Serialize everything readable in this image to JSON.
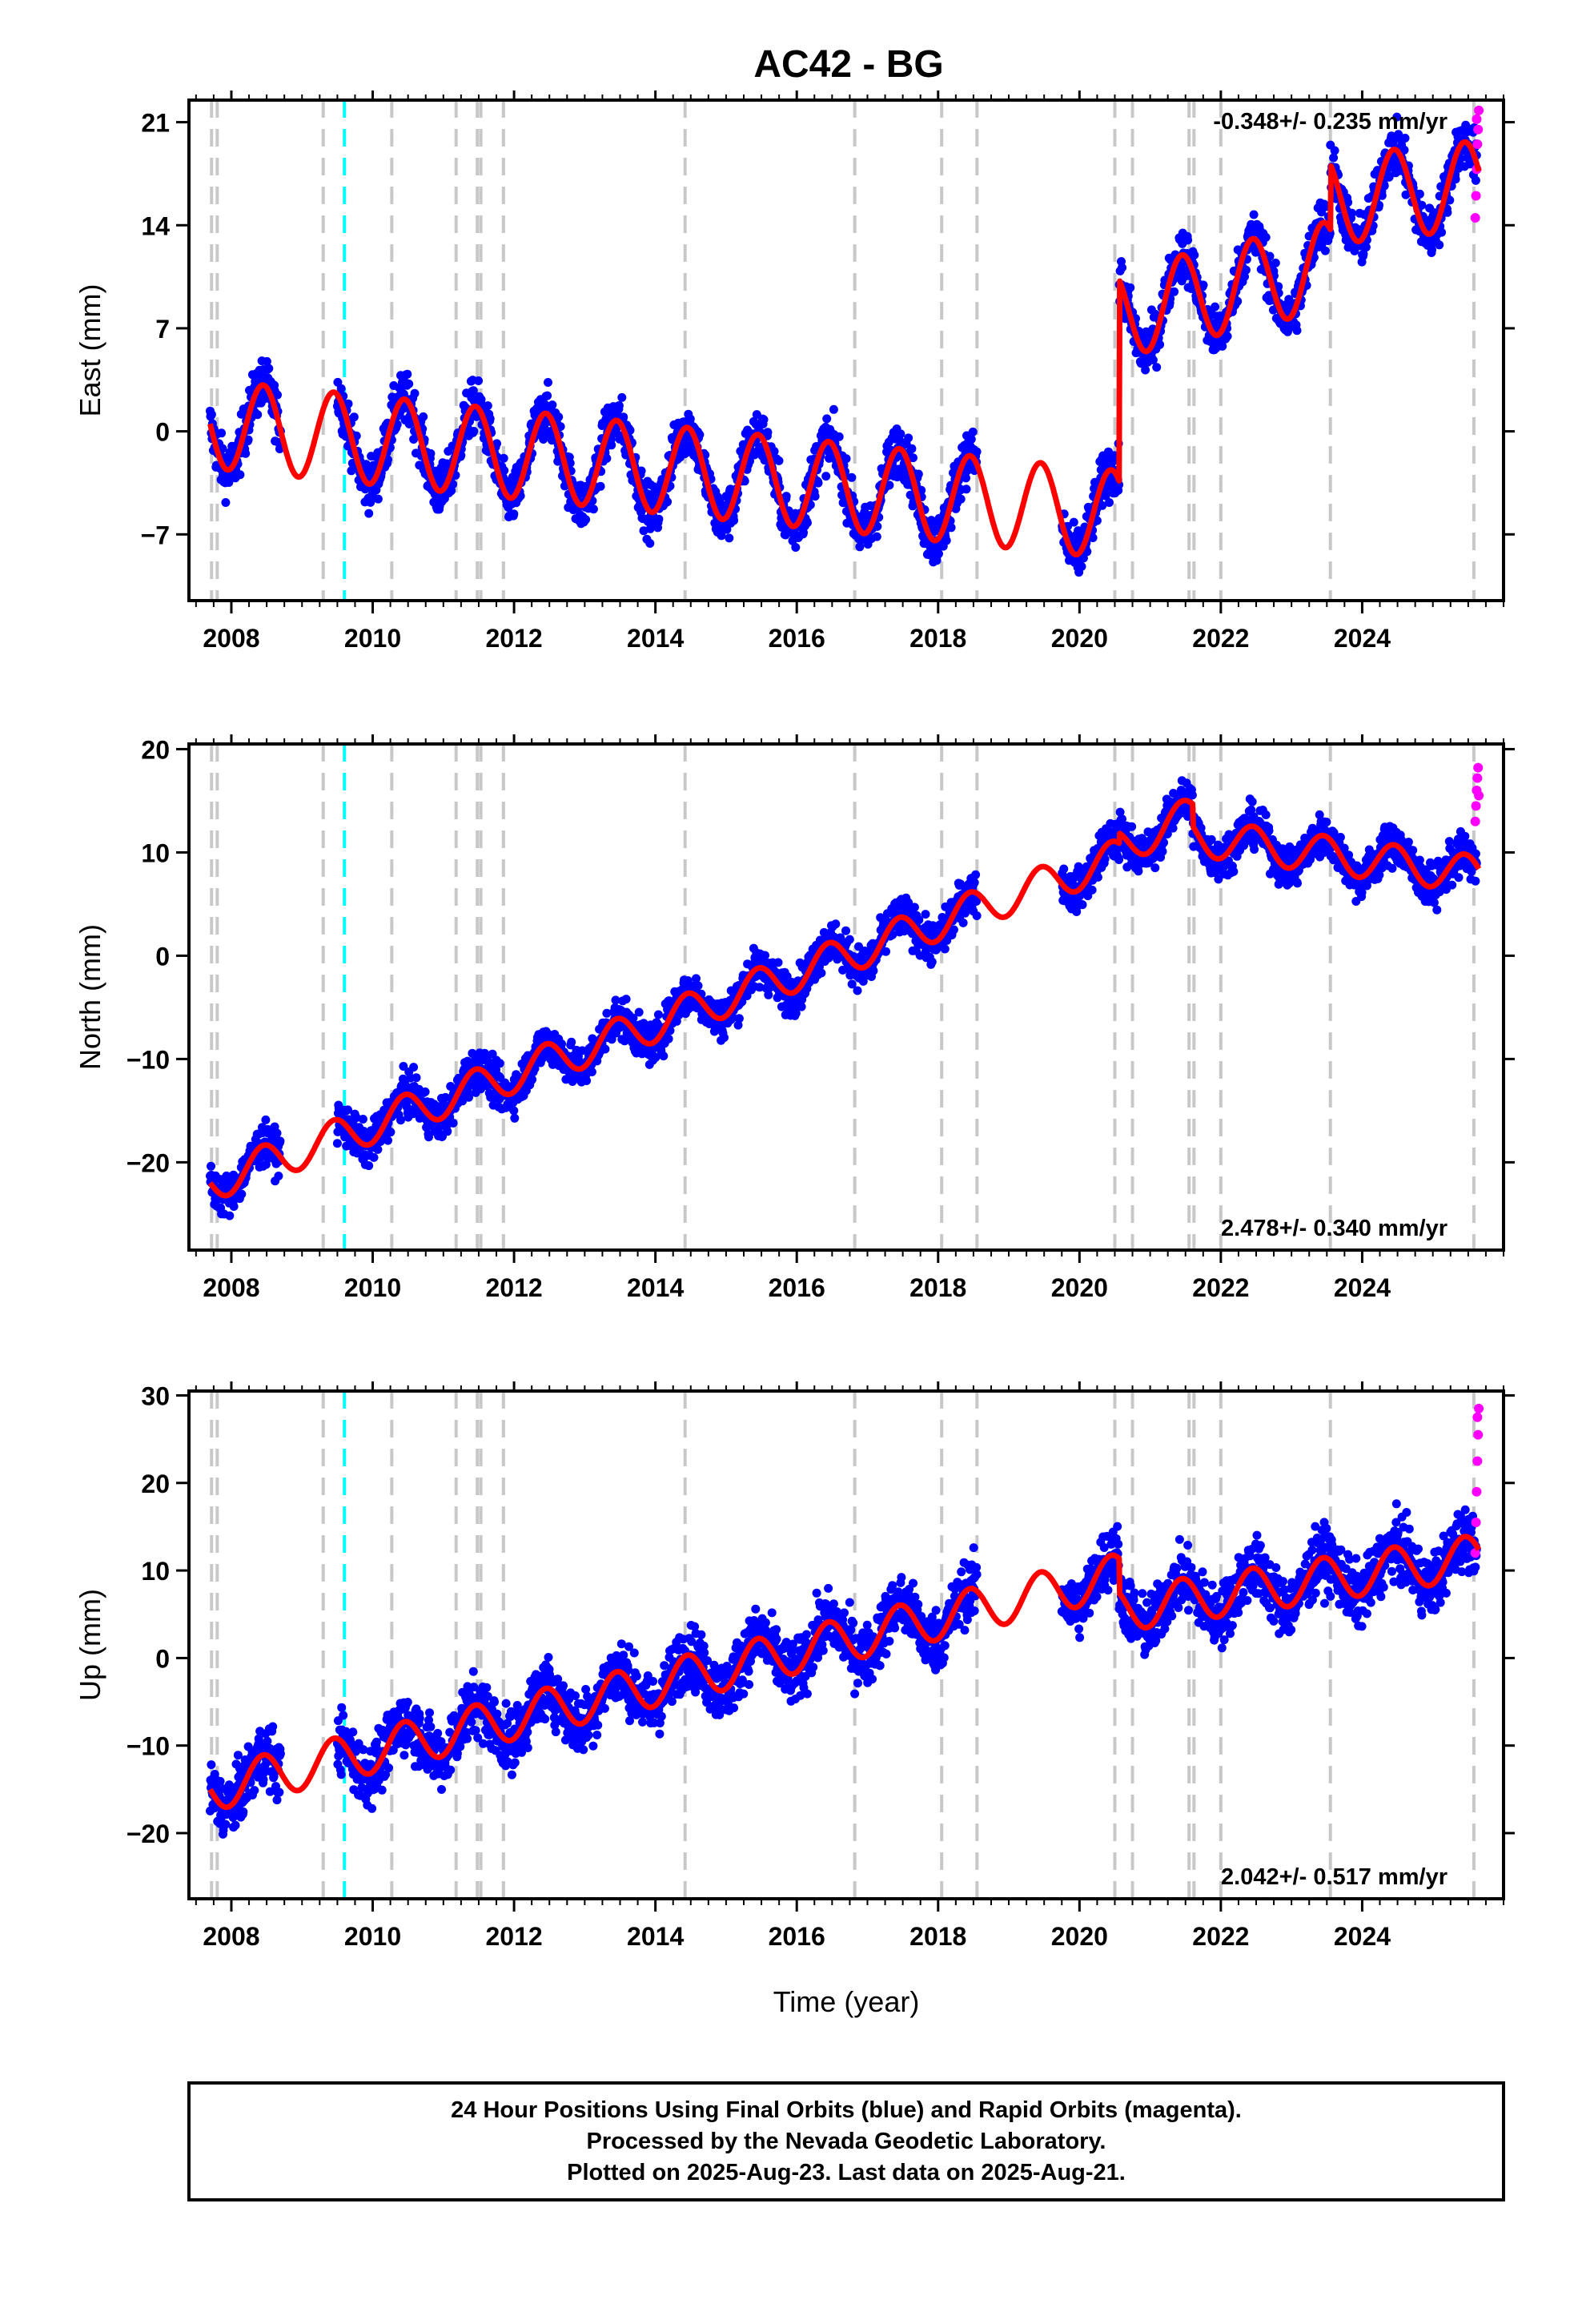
{
  "colors": {
    "final_orbits": "#0000ff",
    "rapid_orbits": "#ff00ff",
    "model": "#ff0000",
    "equipment_change": "#c8c8c8",
    "earthquake": "#00ffff"
  },
  "footer": {
    "lines": [
      "24 Hour Positions Using Final Orbits (blue) and Rapid Orbits (magenta).",
      "Processed by the Nevada Geodetic Laboratory.",
      "Plotted on 2025-Aug-23. Last data on 2025-Aug-21."
    ]
  },
  "chart_data": [
    {
      "type": "scatter",
      "title": "AC42 - BG",
      "component": "east",
      "ylabel": "East (mm)",
      "xlabel": "",
      "xlim": [
        2007.4,
        2026.0
      ],
      "ylim": [
        -11.5,
        22.5
      ],
      "xticks": [
        "2008",
        "2010",
        "2012",
        "2014",
        "2016",
        "2018",
        "2020",
        "2022",
        "2024"
      ],
      "yticks": [
        "−7",
        "0",
        "7",
        "14",
        "21"
      ],
      "ytick_values": [
        -7,
        0,
        7,
        14,
        21
      ],
      "rate_label": "-0.348+/- 0.235 mm/yr",
      "rate_position": "top-right",
      "grid": false,
      "model": {
        "amplitude": 3.0,
        "segments": [
          {
            "start": 2007.7,
            "end": 2020.56,
            "offset": 0.5,
            "slope": -0.48
          },
          {
            "start": 2020.56,
            "end": 2023.55,
            "offset": 8.0,
            "slope": 1.1
          },
          {
            "start": 2023.55,
            "end": 2025.65,
            "offset": 15.7,
            "slope": 0.5
          }
        ]
      },
      "data_ranges": [
        [
          2007.7,
          2008.7
        ],
        [
          2009.5,
          2018.55
        ],
        [
          2019.75,
          2025.62
        ]
      ],
      "scatter": 1.6,
      "rapid_points": [
        [
          2025.6,
          14.5
        ],
        [
          2025.61,
          16.0
        ],
        [
          2025.62,
          17.8
        ],
        [
          2025.63,
          19.5
        ],
        [
          2025.64,
          20.5
        ],
        [
          2025.65,
          21.8
        ],
        [
          2025.62,
          21.2
        ]
      ]
    },
    {
      "type": "scatter",
      "component": "north",
      "ylabel": "North (mm)",
      "xlabel": "",
      "xlim": [
        2007.4,
        2026.0
      ],
      "ylim": [
        -28.5,
        20.5
      ],
      "xticks": [
        "2008",
        "2010",
        "2012",
        "2014",
        "2016",
        "2018",
        "2020",
        "2022",
        "2024"
      ],
      "yticks": [
        "−20",
        "−10",
        "0",
        "10",
        "20"
      ],
      "ytick_values": [
        -20,
        -10,
        0,
        10,
        20
      ],
      "rate_label": "2.478+/- 0.340 mm/yr",
      "rate_position": "bottom-right",
      "grid": false,
      "model": {
        "amplitude": 1.8,
        "segments": [
          {
            "start": 2007.7,
            "end": 2020.56,
            "offset": -22.0,
            "slope": 2.45
          },
          {
            "start": 2020.56,
            "end": 2021.6,
            "offset": 10.5,
            "slope": 3.0
          },
          {
            "start": 2021.6,
            "end": 2025.65,
            "offset": 11.5,
            "slope": -0.9
          }
        ]
      },
      "data_ranges": [
        [
          2007.7,
          2008.7
        ],
        [
          2009.5,
          2018.55
        ],
        [
          2019.75,
          2025.62
        ]
      ],
      "scatter": 1.8,
      "rapid_points": [
        [
          2025.6,
          13.0
        ],
        [
          2025.61,
          14.5
        ],
        [
          2025.62,
          16.0
        ],
        [
          2025.63,
          17.2
        ],
        [
          2025.64,
          18.2
        ],
        [
          2025.65,
          15.5
        ]
      ]
    },
    {
      "type": "scatter",
      "component": "up",
      "ylabel": "Up (mm)",
      "xlabel": "Time (year)",
      "xlim": [
        2007.4,
        2026.0
      ],
      "ylim": [
        -27.5,
        30.5
      ],
      "xticks": [
        "2008",
        "2010",
        "2012",
        "2014",
        "2016",
        "2018",
        "2020",
        "2022",
        "2024"
      ],
      "yticks": [
        "−20",
        "−10",
        "0",
        "10",
        "20",
        "30"
      ],
      "ytick_values": [
        -20,
        -10,
        0,
        10,
        20,
        30
      ],
      "rate_label": "2.042+/- 0.517 mm/yr",
      "rate_position": "bottom-right",
      "grid": false,
      "model": {
        "amplitude": 2.5,
        "segments": [
          {
            "start": 2007.7,
            "end": 2020.56,
            "offset": -15.0,
            "slope": 1.9
          },
          {
            "start": 2020.56,
            "end": 2025.65,
            "offset": 5.5,
            "slope": 1.2
          }
        ]
      },
      "data_ranges": [
        [
          2007.7,
          2008.7
        ],
        [
          2009.5,
          2018.55
        ],
        [
          2019.75,
          2025.62
        ]
      ],
      "scatter": 3.2,
      "rapid_points": [
        [
          2025.6,
          12.0
        ],
        [
          2025.61,
          15.5
        ],
        [
          2025.62,
          19.0
        ],
        [
          2025.63,
          22.5
        ],
        [
          2025.64,
          25.5
        ],
        [
          2025.65,
          28.5
        ],
        [
          2025.63,
          27.5
        ]
      ]
    }
  ],
  "equipment_changes": [
    2007.72,
    2007.8,
    2009.3,
    2010.27,
    2011.18,
    2011.48,
    2011.53,
    2011.85,
    2014.42,
    2016.82,
    2018.05,
    2018.55,
    2020.5,
    2020.75,
    2021.55,
    2021.62,
    2022.0,
    2023.55,
    2025.58
  ],
  "earthquakes": [
    2009.6
  ]
}
